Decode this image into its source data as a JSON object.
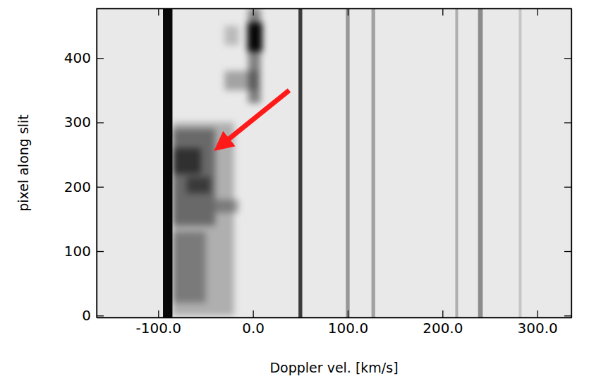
{
  "chart_data": {
    "type": "spectrum",
    "x_label": "Doppler vel. [km/s]",
    "y_label": "pixel along slit",
    "xlim": [
      -165,
      336
    ],
    "ylim": [
      -3,
      477
    ],
    "xticks": [
      {
        "value": -100,
        "label": "-100.0"
      },
      {
        "value": 0,
        "label": "0.0"
      },
      {
        "value": 100,
        "label": "100.0"
      },
      {
        "value": 200,
        "label": "200.0"
      },
      {
        "value": 300,
        "label": "300.0"
      }
    ],
    "yticks": [
      0,
      100,
      200,
      300,
      400
    ],
    "depth_range": [
      0,
      1
    ],
    "lines": [
      {
        "velocity": -90,
        "width": 10,
        "depth": 0.97
      },
      {
        "velocity": 50,
        "width": 4,
        "depth": 0.75
      },
      {
        "velocity": 100,
        "width": 4,
        "depth": 0.35
      },
      {
        "velocity": 127,
        "width": 4,
        "depth": 0.3
      },
      {
        "velocity": 215,
        "width": 3,
        "depth": 0.25
      },
      {
        "velocity": 240,
        "width": 5,
        "depth": 0.4
      },
      {
        "velocity": 282,
        "width": 3,
        "depth": 0.15
      }
    ],
    "features": [
      {
        "x": [
          -85,
          -20
        ],
        "y": [
          0,
          300
        ],
        "depth": 0.25
      },
      {
        "x": [
          -85,
          -40
        ],
        "y": [
          140,
          290
        ],
        "depth": 0.4
      },
      {
        "x": [
          -85,
          -55
        ],
        "y": [
          220,
          260
        ],
        "depth": 0.55
      },
      {
        "x": [
          -70,
          -45
        ],
        "y": [
          190,
          215
        ],
        "depth": 0.45
      },
      {
        "x": [
          -85,
          -50
        ],
        "y": [
          20,
          130
        ],
        "depth": 0.3
      },
      {
        "x": [
          -40,
          -15
        ],
        "y": [
          160,
          180
        ],
        "depth": 0.3
      },
      {
        "x": [
          -5,
          8
        ],
        "y": [
          330,
          477
        ],
        "depth": 0.45
      },
      {
        "x": [
          -6,
          10
        ],
        "y": [
          410,
          455
        ],
        "depth": 0.95
      },
      {
        "x": [
          -30,
          -15
        ],
        "y": [
          420,
          450
        ],
        "depth": 0.2
      },
      {
        "x": [
          -30,
          5
        ],
        "y": [
          350,
          380
        ],
        "depth": 0.3
      }
    ]
  }
}
